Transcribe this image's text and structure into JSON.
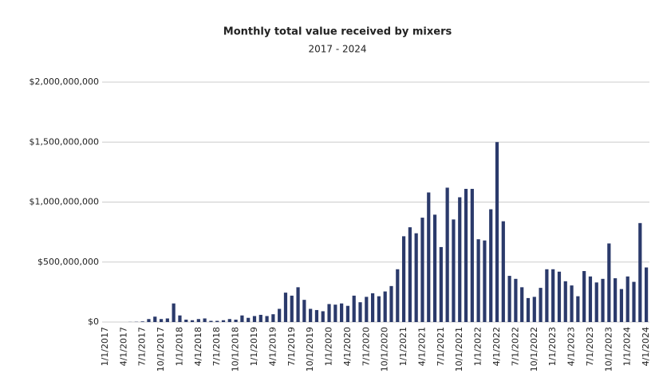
{
  "chart_data": {
    "type": "bar",
    "title": "Monthly total value received by mixers",
    "subtitle": "2017 - 2024",
    "categories": [
      "1/1/2017",
      null,
      null,
      "4/1/2017",
      null,
      null,
      "7/1/2017",
      null,
      null,
      "10/1/2017",
      null,
      null,
      "1/1/2018",
      null,
      null,
      "4/1/2018",
      null,
      null,
      "7/1/2018",
      null,
      null,
      "10/1/2018",
      null,
      null,
      "1/1/2019",
      null,
      null,
      "4/1/2019",
      null,
      null,
      "7/1/2019",
      null,
      null,
      "10/1/2019",
      null,
      null,
      "1/1/2020",
      null,
      null,
      "4/1/2020",
      null,
      null,
      "7/1/2020",
      null,
      null,
      "10/1/2020",
      null,
      null,
      "1/1/2021",
      null,
      null,
      "4/1/2021",
      null,
      null,
      "7/1/2021",
      null,
      null,
      "10/1/2021",
      null,
      null,
      "1/1/2022",
      null,
      null,
      "4/1/2022",
      null,
      null,
      "7/1/2022",
      null,
      null,
      "10/1/2022",
      null,
      null,
      "1/1/2023",
      null,
      null,
      "4/1/2023",
      null,
      null,
      "7/1/2023",
      null,
      null,
      "10/1/2023",
      null,
      null,
      "1/1/2024",
      null,
      null,
      "4/1/2024"
    ],
    "values": [
      0,
      0,
      0,
      0,
      1000000,
      2000000,
      5000000,
      25000000,
      45000000,
      25000000,
      30000000,
      155000000,
      55000000,
      20000000,
      15000000,
      25000000,
      30000000,
      10000000,
      10000000,
      15000000,
      25000000,
      20000000,
      55000000,
      35000000,
      50000000,
      60000000,
      50000000,
      65000000,
      110000000,
      245000000,
      220000000,
      290000000,
      185000000,
      110000000,
      100000000,
      90000000,
      150000000,
      145000000,
      155000000,
      135000000,
      220000000,
      165000000,
      210000000,
      240000000,
      215000000,
      255000000,
      300000000,
      440000000,
      715000000,
      790000000,
      740000000,
      870000000,
      1080000000,
      895000000,
      625000000,
      1120000000,
      855000000,
      1040000000,
      1110000000,
      1110000000,
      690000000,
      680000000,
      940000000,
      1500000000,
      840000000,
      385000000,
      360000000,
      290000000,
      200000000,
      210000000,
      285000000,
      440000000,
      440000000,
      420000000,
      340000000,
      305000000,
      215000000,
      425000000,
      380000000,
      330000000,
      360000000,
      655000000,
      365000000,
      275000000,
      380000000,
      335000000,
      825000000,
      455000000
    ],
    "color": "#2b3a6b",
    "ylim": [
      0,
      2000000000
    ],
    "yticks": [
      {
        "value": 0,
        "label": "$0"
      },
      {
        "value": 500000000,
        "label": "$500,000,000"
      },
      {
        "value": 1000000000,
        "label": "$1,000,000,000"
      },
      {
        "value": 1500000000,
        "label": "$1,500,000,000"
      },
      {
        "value": 2000000000,
        "label": "$2,000,000,000"
      }
    ],
    "grid": true
  }
}
